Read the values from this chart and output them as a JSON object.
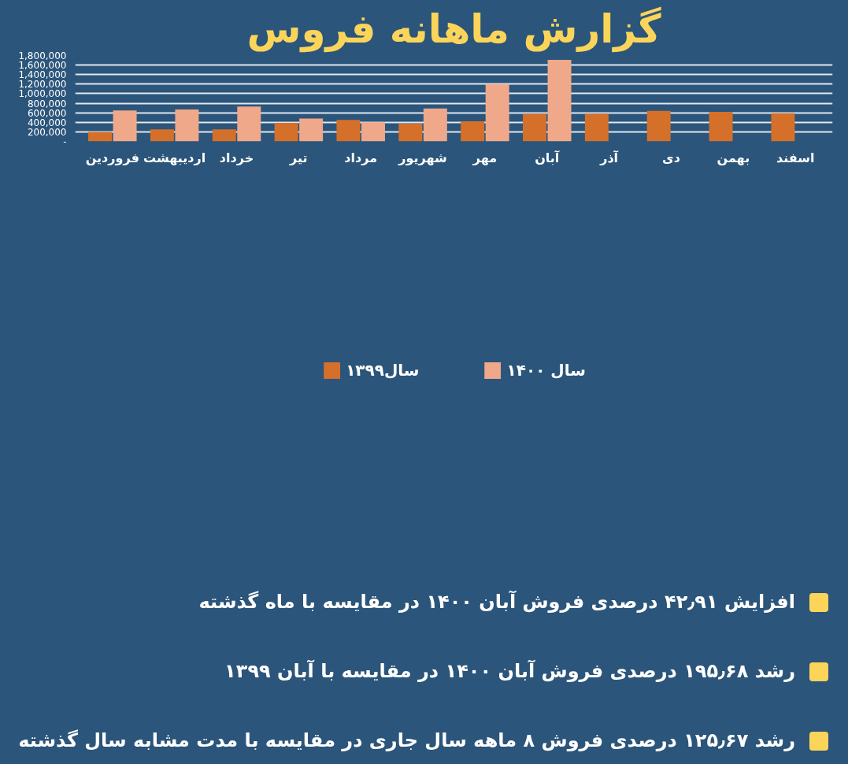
{
  "chart_data": {
    "type": "bar",
    "title": "گزارش ماهانه فروس",
    "categories": [
      "فروردین",
      "اردیبهشت",
      "خرداد",
      "تیر",
      "مرداد",
      "شهریور",
      "مهر",
      "آبان",
      "آذر",
      "دی",
      "بهمن",
      "اسفند"
    ],
    "series": [
      {
        "name": "سال۱۳۹۹",
        "color": "#d4702a",
        "values": [
          200000,
          250000,
          250000,
          390000,
          450000,
          370000,
          420000,
          580000,
          580000,
          640000,
          620000,
          590000
        ]
      },
      {
        "name": "سال ۱۴۰۰",
        "color": "#f0a88a",
        "values": [
          650000,
          670000,
          730000,
          480000,
          400000,
          690000,
          1200000,
          1710000,
          null,
          null,
          null,
          null
        ]
      }
    ],
    "ylim": [
      0,
      1800000
    ],
    "yticks": [
      {
        "value": 0,
        "label": "-"
      },
      {
        "value": 200000,
        "label": "200,000"
      },
      {
        "value": 400000,
        "label": "400,000"
      },
      {
        "value": 600000,
        "label": "600,000"
      },
      {
        "value": 800000,
        "label": "800,000"
      },
      {
        "value": 1000000,
        "label": "1,000,000"
      },
      {
        "value": 1200000,
        "label": "1,200,000"
      },
      {
        "value": 1400000,
        "label": "1,400,000"
      },
      {
        "value": 1600000,
        "label": "1,600,000"
      },
      {
        "value": 1800000,
        "label": "1,800,000"
      }
    ],
    "grid": "y",
    "legend": "bottom",
    "annotations": [
      "افزایش ۴۲٫۹۱ درصدی فروش آبان ۱۴۰۰ در مقایسه با ماه گذشته",
      "رشد ۱۹۵٫۶۸ درصدی فروش آبان ۱۴۰۰ در مقایسه با  آبان ۱۳۹۹",
      "رشد ۱۲۵٫۶۷ درصدی فروش ۸ ماهه سال جاری در مقایسه با مدت مشابه سال گذشته"
    ]
  }
}
